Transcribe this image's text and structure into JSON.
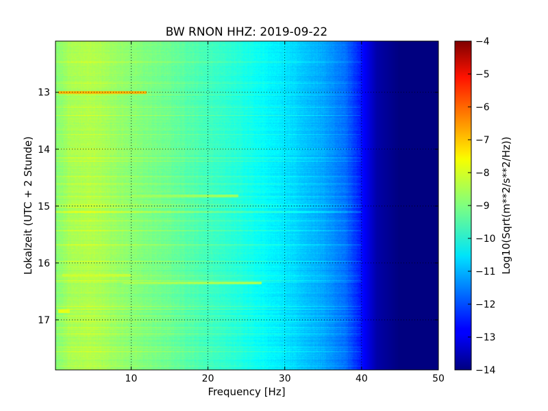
{
  "chart_data": {
    "type": "heatmap",
    "title": "BW RNON HHZ: 2019-09-22",
    "xlabel": "Frequency [Hz]",
    "ylabel": "Lokalzeit (UTC + 2 Stunde)",
    "xlim": [
      0.15,
      50
    ],
    "ylim": [
      12.1,
      17.88
    ],
    "y_inverted": true,
    "x_ticks": [
      10,
      20,
      30,
      40,
      50
    ],
    "x_tick_labels": [
      "10",
      "20",
      "30",
      "40",
      "50"
    ],
    "y_ticks": [
      13,
      14,
      15,
      16,
      17
    ],
    "y_tick_labels": [
      "13",
      "14",
      "15",
      "16",
      "17"
    ],
    "grid": true,
    "colorbar": {
      "label": "Log10(Sqrt(m**2/s**2/Hz))",
      "range": [
        -14,
        -4
      ],
      "ticks": [
        -4,
        -5,
        -6,
        -7,
        -8,
        -9,
        -10,
        -11,
        -12,
        -13,
        -14
      ],
      "tick_labels": [
        "−4",
        "−5",
        "−6",
        "−7",
        "−8",
        "−9",
        "−10",
        "−11",
        "−12",
        "−13",
        "−14"
      ],
      "colormap": "jet"
    },
    "spectrum_profile": [
      {
        "freq_hz": 0.5,
        "value": -8.9
      },
      {
        "freq_hz": 2,
        "value": -8.6
      },
      {
        "freq_hz": 5,
        "value": -8.5
      },
      {
        "freq_hz": 10,
        "value": -8.9
      },
      {
        "freq_hz": 15,
        "value": -9.2
      },
      {
        "freq_hz": 20,
        "value": -9.6
      },
      {
        "freq_hz": 25,
        "value": -10.0
      },
      {
        "freq_hz": 30,
        "value": -10.5
      },
      {
        "freq_hz": 35,
        "value": -11.1
      },
      {
        "freq_hz": 38,
        "value": -11.7
      },
      {
        "freq_hz": 40,
        "value": -12.6
      },
      {
        "freq_hz": 42,
        "value": -13.6
      },
      {
        "freq_hz": 45,
        "value": -14.0
      },
      {
        "freq_hz": 50,
        "value": -14.0
      }
    ],
    "features": [
      {
        "time_h": 13.0,
        "freq_range_hz": [
          0.5,
          12
        ],
        "value": -7.0
      },
      {
        "time_h": 16.35,
        "freq_range_hz": [
          9,
          27
        ],
        "value": -8.6
      },
      {
        "time_h": 14.82,
        "freq_range_hz": [
          10,
          24
        ],
        "value": -8.7
      },
      {
        "time_h": 16.22,
        "freq_range_hz": [
          1,
          10
        ],
        "value": -8.3
      },
      {
        "time_h": 16.85,
        "freq_range_hz": [
          0.5,
          2
        ],
        "value": -8.0
      }
    ]
  }
}
